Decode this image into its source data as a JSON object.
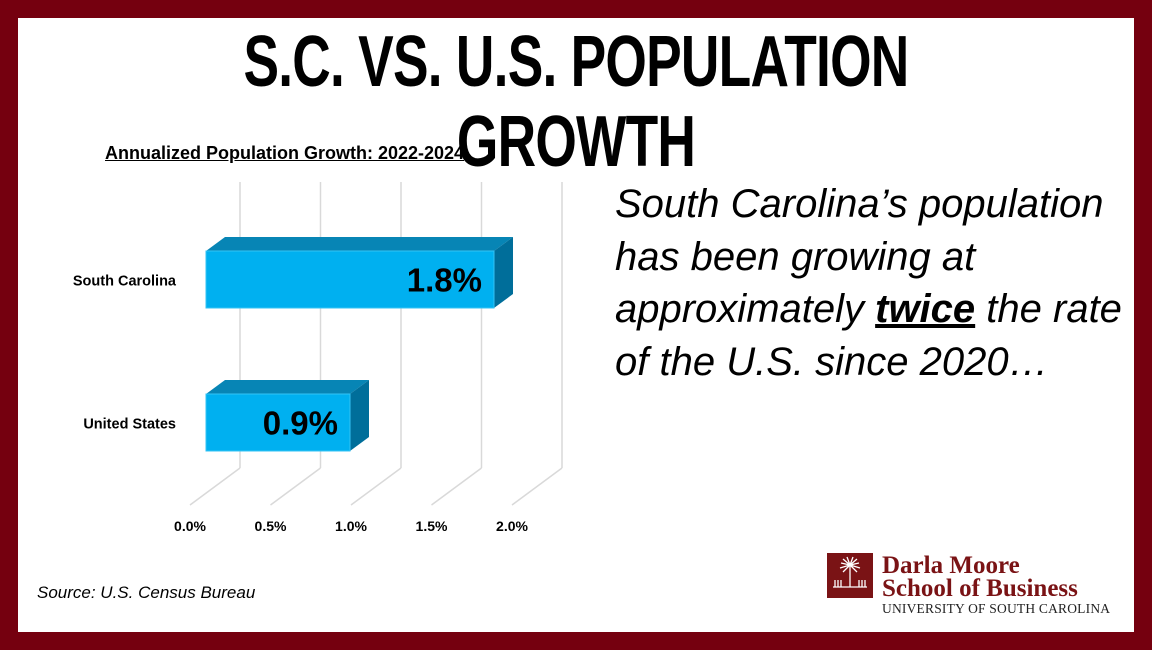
{
  "title": "S.C. VS. U.S. POPULATION GROWTH",
  "chart_data": {
    "type": "bar",
    "orientation": "horizontal",
    "style": "3d",
    "title": "Annualized Population Growth: 2022-2024",
    "categories": [
      "South Carolina",
      "United States"
    ],
    "values": [
      1.8,
      0.9
    ],
    "data_labels": [
      "1.8%",
      "0.9%"
    ],
    "xlim": [
      0,
      2.0
    ],
    "xticks": [
      "0.0%",
      "0.5%",
      "1.0%",
      "1.5%",
      "2.0%"
    ],
    "grid": true,
    "colors": {
      "front": "#00b0f0",
      "top": "#0785b5",
      "side": "#006e9a"
    }
  },
  "quote": {
    "before": "South Carolina’s population has been growing at approximately ",
    "emphasis": "twice",
    "after": " the rate of the U.S. since 2020…"
  },
  "source": "Source: U.S. Census Bureau",
  "logo": {
    "line1": "Darla Moore",
    "line2": "School of Business",
    "line3": "UNIVERSITY OF SOUTH CAROLINA"
  }
}
